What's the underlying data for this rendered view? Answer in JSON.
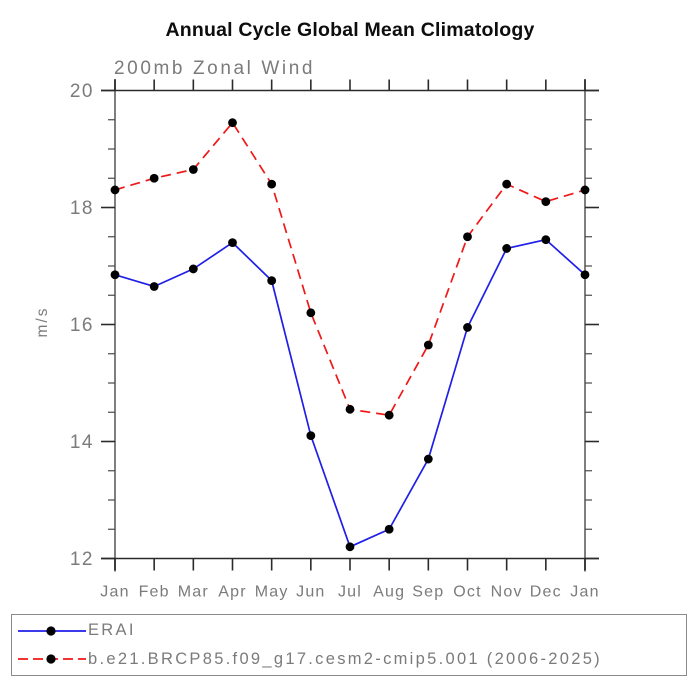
{
  "header": {
    "title": "Annual Cycle Global Mean Climatology",
    "subtitle": "200mb Zonal Wind"
  },
  "chart_data": {
    "type": "line",
    "title": "Annual Cycle Global Mean Climatology",
    "subtitle": "200mb Zonal Wind",
    "xlabel": "",
    "ylabel": "m/s",
    "ylim": [
      12,
      20
    ],
    "ytick_major": [
      12,
      14,
      16,
      18,
      20
    ],
    "ytick_minor_step": 0.5,
    "grid": false,
    "legend_position": "bottom",
    "categories": [
      "Jan",
      "Feb",
      "Mar",
      "Apr",
      "May",
      "Jun",
      "Jul",
      "Aug",
      "Sep",
      "Oct",
      "Nov",
      "Dec",
      "Jan"
    ],
    "series": [
      {
        "name": "ERAI",
        "color": "#1f1fe8",
        "style": "solid",
        "marker": "filled-circle",
        "values": [
          16.85,
          16.65,
          16.95,
          17.4,
          16.75,
          14.1,
          12.2,
          12.5,
          13.7,
          15.95,
          17.3,
          17.45,
          16.85
        ]
      },
      {
        "name": "b.e21.BRCP85.f09_g17.cesm2-cmip5.001 (2006-2025)",
        "color": "#f01818",
        "style": "dashed",
        "marker": "filled-circle",
        "values": [
          18.3,
          18.5,
          18.65,
          19.45,
          18.4,
          16.2,
          14.55,
          14.45,
          15.65,
          17.5,
          18.4,
          18.1,
          18.3
        ]
      }
    ]
  },
  "legend": {
    "entries": [
      {
        "label": "ERAI",
        "color": "#1f1fe8",
        "style": "solid"
      },
      {
        "label": "b.e21.BRCP85.f09_g17.cesm2-cmip5.001 (2006-2025)",
        "color": "#f01818",
        "style": "dashed"
      }
    ]
  },
  "colors": {
    "marker": "#000000",
    "axis_dark": "#2b2b2b",
    "frame_vertical": "#7f7f7f",
    "tick_minor": "#4a4a4a",
    "label_gray": "#7b7b7b"
  }
}
